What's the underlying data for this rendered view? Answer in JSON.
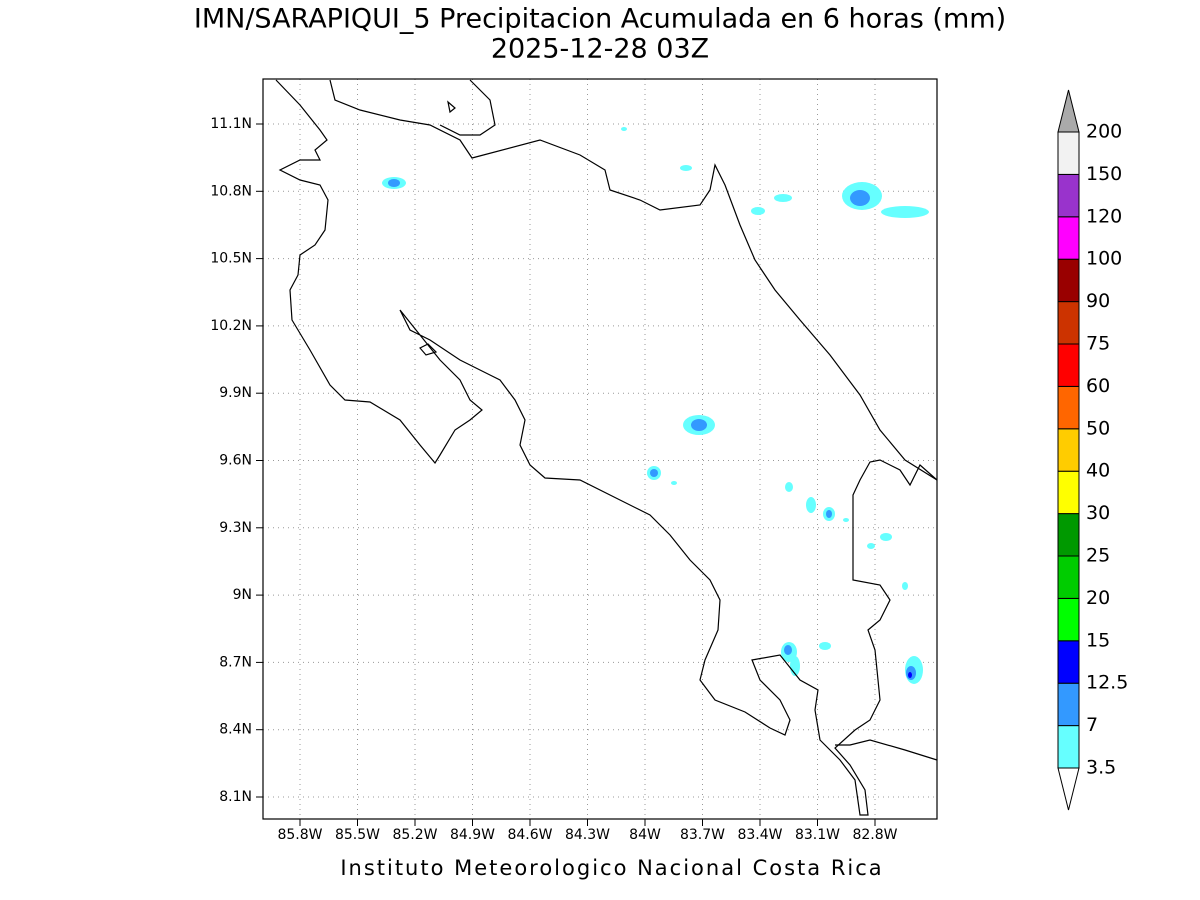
{
  "map": {
    "title": "IMN/SARAPIQUI_5 Precipitacion Acumulada en 6 horas (mm)",
    "subtitle": "2025-12-28 03Z",
    "lon_labels": [
      "85.8W",
      "85.5W",
      "85.2W",
      "84.9W",
      "84.6W",
      "84.3W",
      "84W",
      "83.7W",
      "83.4W",
      "83.1W",
      "82.8W"
    ],
    "lat_labels": [
      "11.1N",
      "10.8N",
      "10.5N",
      "10.2N",
      "9.9N",
      "9.6N",
      "9.3N",
      "9N",
      "8.7N",
      "8.4N",
      "8.1N"
    ],
    "colorbar": {
      "levels": [
        3.5,
        7,
        12.5,
        15,
        20,
        25,
        30,
        40,
        50,
        60,
        75,
        90,
        100,
        120,
        150,
        200
      ],
      "colors": [
        "#66ffff",
        "#3399ff",
        "#0000ff",
        "#00ff00",
        "#00cc00",
        "#009900",
        "#ffff00",
        "#ffcc00",
        "#ff6600",
        "#ff0000",
        "#cc3300",
        "#990000",
        "#ff00ff",
        "#9933cc",
        "#f2f2f2"
      ],
      "under_color": "#ffffff",
      "over_color": "#aaaaaa"
    },
    "footer": "Instituto Meteorologico Nacional Costa Rica"
  }
}
